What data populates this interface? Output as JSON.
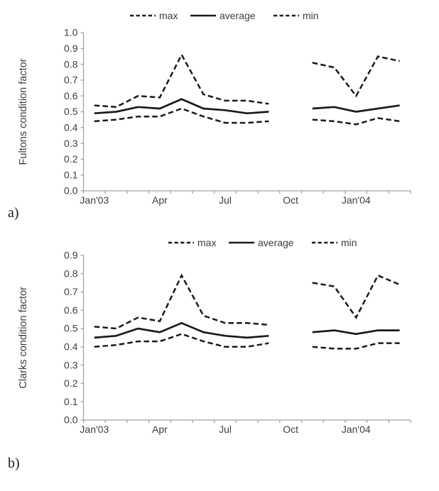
{
  "figure": {
    "panels": [
      {
        "label": "a)"
      },
      {
        "label": "b)"
      }
    ]
  },
  "legend": {
    "items": [
      {
        "name": "max",
        "style": "dashed"
      },
      {
        "name": "average",
        "style": "solid"
      },
      {
        "name": "min",
        "style": "dashed"
      }
    ],
    "position": "top-center"
  },
  "colors": {
    "series_line": "#1a1a1a",
    "axis_line": "#a3a3a3",
    "label_text": "#3d3d3d"
  },
  "chart_data": [
    {
      "type": "line",
      "panel": "a",
      "title": "",
      "xlabel": "",
      "ylabel": "Fultons condition factor",
      "ylim": [
        0.0,
        1.0
      ],
      "ytick_step": 0.1,
      "ytick_labels": [
        "0.0",
        "0.1",
        "0.2",
        "0.3",
        "0.4",
        "0.5",
        "0.6",
        "0.7",
        "0.8",
        "0.9",
        "1.0"
      ],
      "x_months": [
        "Jan'03",
        "Feb'03",
        "Mar'03",
        "Apr'03",
        "May'03",
        "Jun'03",
        "Jul'03",
        "Aug'03",
        "Sep'03",
        "Oct'03",
        "Nov'03",
        "Dec'03",
        "Jan'04",
        "Feb'04",
        "Mar'04"
      ],
      "xtick_labels": [
        {
          "label": "Jan'03",
          "month_index": 0
        },
        {
          "label": "Apr",
          "month_index": 3
        },
        {
          "label": "Jul",
          "month_index": 6
        },
        {
          "label": "Oct",
          "month_index": 9
        },
        {
          "label": "Jan'04",
          "month_index": 12
        }
      ],
      "data_gap_month_index": 9,
      "grid": false,
      "series": [
        {
          "name": "max",
          "style": "dashed",
          "segments": [
            {
              "start_month_index": 0,
              "values": [
                0.54,
                0.53,
                0.6,
                0.59,
                0.86,
                0.61,
                0.57,
                0.57,
                0.55
              ]
            },
            {
              "start_month_index": 10,
              "values": [
                0.81,
                0.78,
                0.6,
                0.85,
                0.82
              ]
            }
          ]
        },
        {
          "name": "average",
          "style": "solid",
          "segments": [
            {
              "start_month_index": 0,
              "values": [
                0.49,
                0.5,
                0.53,
                0.52,
                0.58,
                0.52,
                0.51,
                0.49,
                0.5
              ]
            },
            {
              "start_month_index": 10,
              "values": [
                0.52,
                0.53,
                0.5,
                0.52,
                0.54
              ]
            }
          ]
        },
        {
          "name": "min",
          "style": "dashed",
          "segments": [
            {
              "start_month_index": 0,
              "values": [
                0.44,
                0.45,
                0.47,
                0.47,
                0.52,
                0.47,
                0.43,
                0.43,
                0.44
              ]
            },
            {
              "start_month_index": 10,
              "values": [
                0.45,
                0.44,
                0.42,
                0.46,
                0.44
              ]
            }
          ]
        }
      ]
    },
    {
      "type": "line",
      "panel": "b",
      "title": "",
      "xlabel": "",
      "ylabel": "Clarks condition factor",
      "ylim": [
        0.0,
        0.9
      ],
      "ytick_step": 0.1,
      "ytick_labels": [
        "0.0",
        "0.1",
        "0.2",
        "0.3",
        "0.4",
        "0.5",
        "0.6",
        "0.7",
        "0.8",
        "0.9"
      ],
      "x_months": [
        "Jan'03",
        "Feb'03",
        "Mar'03",
        "Apr'03",
        "May'03",
        "Jun'03",
        "Jul'03",
        "Aug'03",
        "Sep'03",
        "Oct'03",
        "Nov'03",
        "Dec'03",
        "Jan'04",
        "Feb'04",
        "Mar'04"
      ],
      "xtick_labels": [
        {
          "label": "Jan'03",
          "month_index": 0
        },
        {
          "label": "Apr",
          "month_index": 3
        },
        {
          "label": "Jul",
          "month_index": 6
        },
        {
          "label": "Oct",
          "month_index": 9
        },
        {
          "label": "Jan'04",
          "month_index": 12
        }
      ],
      "data_gap_month_index": 9,
      "grid": false,
      "series": [
        {
          "name": "max",
          "style": "dashed",
          "segments": [
            {
              "start_month_index": 0,
              "values": [
                0.51,
                0.5,
                0.56,
                0.54,
                0.79,
                0.57,
                0.53,
                0.53,
                0.52
              ]
            },
            {
              "start_month_index": 10,
              "values": [
                0.75,
                0.73,
                0.56,
                0.79,
                0.74
              ]
            }
          ]
        },
        {
          "name": "average",
          "style": "solid",
          "segments": [
            {
              "start_month_index": 0,
              "values": [
                0.45,
                0.46,
                0.5,
                0.48,
                0.53,
                0.48,
                0.46,
                0.45,
                0.46
              ]
            },
            {
              "start_month_index": 10,
              "values": [
                0.48,
                0.49,
                0.47,
                0.49,
                0.49
              ]
            }
          ]
        },
        {
          "name": "min",
          "style": "dashed",
          "segments": [
            {
              "start_month_index": 0,
              "values": [
                0.4,
                0.41,
                0.43,
                0.43,
                0.47,
                0.43,
                0.4,
                0.4,
                0.42
              ]
            },
            {
              "start_month_index": 10,
              "values": [
                0.4,
                0.39,
                0.39,
                0.42,
                0.42
              ]
            }
          ]
        }
      ]
    }
  ]
}
